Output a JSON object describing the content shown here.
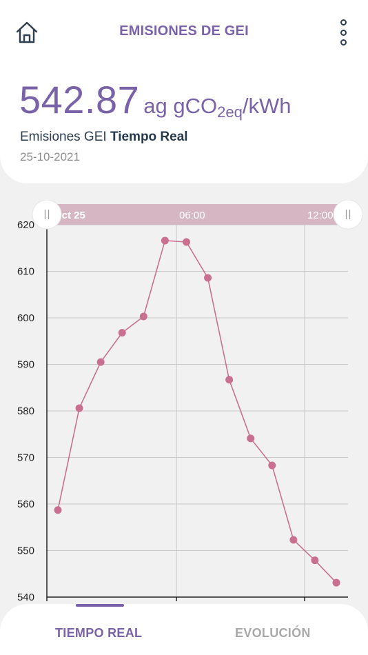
{
  "header": {
    "title": "EMISIONES DE GEI",
    "home_icon": "home-icon",
    "menu_icon": "more-vertical-icon"
  },
  "reading": {
    "value": "542.87",
    "unit_prefix": "ag gCO",
    "unit_sub": "2eq",
    "unit_suffix": "/kWh",
    "label_regular": "Emisiones GEI ",
    "label_bold": "Tiempo Real",
    "date": "25-10-2021"
  },
  "colors": {
    "accent": "#7a62a8",
    "series": "#c97090",
    "navigator": "#d6b6c3",
    "dark_text": "#2c3e50"
  },
  "navigator": {
    "labels": [
      "Oct 25",
      "06:00",
      "12:00"
    ]
  },
  "chart_data": {
    "type": "line",
    "title": "",
    "xlabel": "",
    "ylabel": "",
    "ylim": [
      540,
      620
    ],
    "yticks": [
      540,
      550,
      560,
      570,
      580,
      590,
      600,
      610,
      620
    ],
    "grid": true,
    "x_ticks": [
      "06:00",
      "12:00"
    ],
    "series": [
      {
        "values": [
          558.7,
          580.6,
          590.5,
          596.8,
          600.3,
          616.6,
          616.3,
          608.6,
          586.7,
          574.1,
          568.3,
          552.3,
          547.9,
          543.1
        ]
      }
    ]
  },
  "tabs": {
    "active": "TIEMPO REAL",
    "inactive": "EVOLUCIÓN"
  }
}
